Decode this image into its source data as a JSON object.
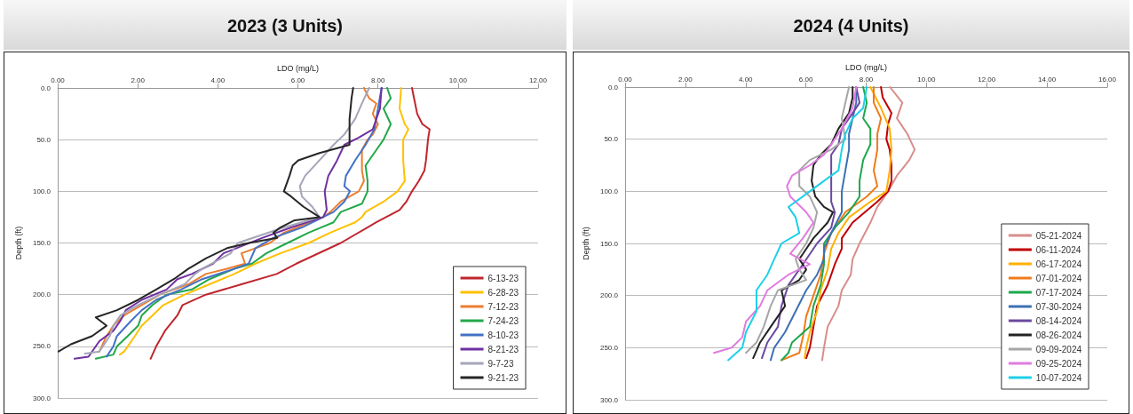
{
  "chart_data": [
    {
      "type": "line",
      "title": "2023 (3 Units)",
      "xlabel": "LDO (mg/L)",
      "ylabel": "Depth (ft)",
      "xlim": [
        0,
        12
      ],
      "xticks": [
        {
          "value": 0,
          "label": "0.00"
        },
        {
          "value": 2,
          "label": "2.00"
        },
        {
          "value": 4,
          "label": "4.00"
        },
        {
          "value": 6,
          "label": "6.00"
        },
        {
          "value": 8,
          "label": "8.00"
        },
        {
          "value": 10,
          "label": "10.00"
        },
        {
          "value": 12,
          "label": "12.00"
        }
      ],
      "ylim": [
        300,
        0
      ],
      "yticks": [
        {
          "value": 0,
          "label": "0.0"
        },
        {
          "value": 50,
          "label": "50.0"
        },
        {
          "value": 100,
          "label": "100.0"
        },
        {
          "value": 150,
          "label": "150.0"
        },
        {
          "value": 200,
          "label": "200.0"
        },
        {
          "value": 250,
          "label": "250.0"
        },
        {
          "value": 300,
          "label": "300.0"
        }
      ],
      "grid": "y",
      "legend": "bottom right",
      "marker": "none",
      "line_style": "solid",
      "series": [
        {
          "name": "6-13-23",
          "color": "#c0262d",
          "x": [
            8.85,
            8.98,
            9.11,
            9.29,
            9.25,
            9.2,
            9.16,
            9.02,
            8.85,
            8.71,
            8.54,
            7.96,
            7.07,
            5.96,
            5.47,
            4.59,
            3.7,
            3.12,
            2.99,
            2.68,
            2.46,
            2.32
          ],
          "values": [
            0,
            25,
            35,
            40,
            50,
            70,
            80,
            90,
            100,
            110,
            118,
            130,
            150,
            170,
            180,
            190,
            200,
            210,
            220,
            235,
            250,
            262
          ]
        },
        {
          "name": "6-28-23",
          "color": "#ffc000",
          "x": [
            8.58,
            8.54,
            8.67,
            8.76,
            8.63,
            8.63,
            8.67,
            8.49,
            8.14,
            7.69,
            7.6,
            7.43,
            6.81,
            6.27,
            5.56,
            4.94,
            4.41,
            3.79,
            3.17,
            2.64,
            2.37,
            2.1,
            1.93,
            1.66,
            1.55
          ],
          "values": [
            0,
            20,
            35,
            40,
            50,
            70,
            90,
            100,
            110,
            120,
            125,
            130,
            140,
            150,
            160,
            170,
            180,
            190,
            200,
            210,
            220,
            230,
            240,
            255,
            258
          ]
        },
        {
          "name": "7-12-23",
          "color": "#ed7d31",
          "x": [
            7.65,
            7.78,
            7.96,
            7.87,
            8.0,
            7.87,
            7.74,
            7.6,
            7.6,
            7.65,
            7.52,
            7.07,
            6.81,
            6.63,
            5.65,
            5.3,
            4.59,
            4.68,
            4.23,
            3.7,
            3.26,
            2.55,
            2.1,
            1.66,
            1.39,
            1.22,
            1.04
          ],
          "values": [
            0,
            10,
            15,
            25,
            35,
            45,
            50,
            60,
            80,
            90,
            100,
            110,
            120,
            125,
            140,
            150,
            160,
            170,
            175,
            180,
            190,
            200,
            210,
            220,
            230,
            240,
            255
          ]
        },
        {
          "name": "7-24-23",
          "color": "#22a84a",
          "x": [
            8.23,
            8.32,
            8.14,
            8.32,
            8.14,
            7.96,
            7.69,
            7.74,
            7.74,
            7.6,
            7.07,
            6.89,
            6.27,
            5.74,
            5.21,
            4.85,
            4.41,
            3.79,
            3.35,
            2.72,
            2.37,
            2.1,
            2.01,
            1.75,
            1.48,
            1.39,
            0.95
          ],
          "values": [
            0,
            10,
            20,
            35,
            50,
            60,
            75,
            90,
            100,
            112,
            120,
            130,
            140,
            150,
            160,
            170,
            175,
            185,
            195,
            200,
            210,
            220,
            230,
            240,
            250,
            258,
            262
          ]
        },
        {
          "name": "8-10-23",
          "color": "#4472c4",
          "x": [
            8.09,
            8.0,
            7.91,
            7.69,
            7.43,
            7.2,
            7.16,
            7.3,
            7.16,
            6.89,
            6.63,
            6.1,
            5.39,
            4.94,
            4.77,
            4.41,
            3.61,
            3.08,
            2.46,
            2.1,
            1.84,
            1.48,
            1.39,
            1.22
          ],
          "values": [
            0,
            20,
            40,
            55,
            70,
            85,
            95,
            100,
            110,
            120,
            125,
            135,
            145,
            155,
            170,
            175,
            185,
            195,
            205,
            215,
            225,
            240,
            250,
            260
          ]
        },
        {
          "name": "8-21-23",
          "color": "#7030a0",
          "x": [
            8.09,
            8.05,
            7.87,
            7.52,
            7.16,
            6.98,
            6.76,
            6.67,
            6.72,
            6.63,
            5.83,
            5.12,
            4.14,
            3.88,
            3.35,
            2.99,
            2.72,
            2.1,
            1.7,
            1.57,
            1.39,
            1.04,
            0.77,
            0.42
          ],
          "values": [
            0,
            20,
            40,
            48,
            55,
            70,
            85,
            100,
            118,
            125,
            135,
            145,
            160,
            170,
            180,
            185,
            195,
            205,
            215,
            225,
            235,
            245,
            260,
            262
          ]
        },
        {
          "name": "9-7-23",
          "color": "#a5a5b8",
          "x": [
            7.78,
            7.6,
            7.43,
            7.16,
            6.89,
            6.54,
            6.18,
            6.05,
            6.1,
            6.36,
            6.54,
            5.65,
            4.5,
            4.32,
            3.61,
            3.43,
            3.17,
            2.55,
            2.01,
            1.57,
            1.39,
            1.3,
            1.04,
            0.68
          ],
          "values": [
            0,
            15,
            30,
            45,
            55,
            70,
            85,
            95,
            105,
            115,
            125,
            135,
            150,
            160,
            175,
            180,
            190,
            200,
            210,
            220,
            230,
            240,
            255,
            257
          ]
        },
        {
          "name": "9-21-23",
          "color": "#262626",
          "x": [
            7.38,
            7.34,
            7.29,
            7.29,
            6.54,
            6.01,
            5.87,
            5.79,
            5.65,
            5.83,
            6.14,
            6.54,
            5.92,
            5.56,
            5.39,
            5.48,
            4.77,
            4.23,
            3.7,
            3.26,
            2.9,
            2.46,
            2.01,
            1.48,
            0.95,
            1.22,
            0.86,
            0.33,
            0.02
          ],
          "values": [
            0,
            10,
            30,
            55,
            63,
            70,
            75,
            85,
            100,
            105,
            115,
            125,
            128,
            135,
            140,
            145,
            150,
            155,
            165,
            175,
            185,
            195,
            205,
            215,
            222,
            230,
            240,
            248,
            255
          ]
        }
      ]
    },
    {
      "type": "line",
      "title": "2024 (4 Units)",
      "xlabel": "LDO (mg/L)",
      "ylabel": "Depth (ft)",
      "xlim": [
        0,
        16
      ],
      "xticks": [
        {
          "value": 0,
          "label": "0.00"
        },
        {
          "value": 2,
          "label": "2.00"
        },
        {
          "value": 4,
          "label": "4.00"
        },
        {
          "value": 6,
          "label": "6.00"
        },
        {
          "value": 8,
          "label": "8.00"
        },
        {
          "value": 10,
          "label": "10.00"
        },
        {
          "value": 12,
          "label": "12.00"
        },
        {
          "value": 14,
          "label": "14.00"
        },
        {
          "value": 16,
          "label": "16.00"
        }
      ],
      "ylim": [
        300,
        0
      ],
      "yticks": [
        {
          "value": 0,
          "label": "0.0"
        },
        {
          "value": 50,
          "label": "50.0"
        },
        {
          "value": 100,
          "label": "100.0"
        },
        {
          "value": 150,
          "label": "150.0"
        },
        {
          "value": 200,
          "label": "200.0"
        },
        {
          "value": 250,
          "label": "250.0"
        },
        {
          "value": 300,
          "label": "300.0"
        }
      ],
      "grid": "y",
      "legend": "bottom right",
      "marker": "none",
      "line_style": "solid",
      "series": [
        {
          "name": "05-21-2024",
          "color": "#d98c8c",
          "x": [
            8.79,
            9.2,
            9.02,
            9.37,
            9.61,
            9.43,
            9.02,
            8.73,
            8.37,
            8.14,
            7.78,
            7.55,
            7.49,
            7.19,
            7.08,
            6.72,
            6.6,
            6.54
          ],
          "values": [
            0,
            15,
            30,
            45,
            60,
            70,
            85,
            100,
            115,
            130,
            150,
            165,
            180,
            195,
            210,
            230,
            250,
            262
          ]
        },
        {
          "name": "06-11-2024",
          "color": "#c00000",
          "x": [
            8.49,
            8.55,
            8.84,
            8.73,
            8.67,
            8.78,
            8.84,
            8.84,
            8.73,
            8.37,
            7.55,
            7.19,
            7.19,
            6.96,
            6.72,
            6.37,
            6.25,
            6.13,
            6.01
          ],
          "values": [
            0,
            10,
            25,
            35,
            50,
            60,
            75,
            90,
            100,
            110,
            130,
            145,
            155,
            170,
            190,
            210,
            230,
            250,
            260
          ]
        },
        {
          "name": "06-17-2024",
          "color": "#ffb000",
          "x": [
            8.14,
            8.49,
            8.78,
            8.84,
            8.78,
            8.67,
            8.14,
            7.43,
            7.08,
            6.84,
            6.72,
            6.49,
            6.37,
            6.13,
            6.01,
            5.96
          ],
          "values": [
            0,
            20,
            40,
            60,
            80,
            100,
            110,
            125,
            140,
            155,
            175,
            195,
            215,
            235,
            250,
            260
          ]
        },
        {
          "name": "07-01-2024",
          "color": "#f07b1a",
          "x": [
            8.25,
            8.25,
            8.49,
            8.37,
            8.37,
            8.25,
            8.37,
            8.02,
            7.31,
            6.84,
            6.6,
            6.49,
            6.25,
            6.01,
            5.9,
            5.78,
            5.19
          ],
          "values": [
            0,
            15,
            30,
            45,
            60,
            80,
            95,
            105,
            120,
            140,
            160,
            180,
            200,
            220,
            240,
            255,
            262
          ]
        },
        {
          "name": "07-17-2024",
          "color": "#1da84b",
          "x": [
            7.9,
            8.02,
            7.9,
            8.14,
            8.14,
            7.9,
            7.78,
            7.78,
            7.43,
            6.96,
            6.6,
            6.6,
            6.49,
            6.25,
            6.13,
            5.54,
            5.42,
            5.19
          ],
          "values": [
            0,
            15,
            30,
            40,
            55,
            70,
            90,
            105,
            120,
            135,
            150,
            170,
            190,
            210,
            230,
            245,
            255,
            262
          ]
        },
        {
          "name": "07-30-2024",
          "color": "#3d6fb5",
          "x": [
            7.67,
            7.67,
            7.55,
            7.43,
            7.43,
            7.31,
            7.19,
            7.19,
            6.84,
            6.6,
            6.6,
            6.37,
            6.01,
            5.66,
            5.31,
            4.95,
            4.83
          ],
          "values": [
            0,
            15,
            30,
            45,
            60,
            80,
            100,
            120,
            140,
            155,
            165,
            180,
            195,
            215,
            235,
            250,
            262
          ]
        },
        {
          "name": "08-14-2024",
          "color": "#6a4aa0",
          "x": [
            7.67,
            7.78,
            7.55,
            7.19,
            7.08,
            6.84,
            6.84,
            6.84,
            6.84,
            6.96,
            6.84,
            6.37,
            5.9,
            5.42,
            5.19,
            5.07,
            4.72,
            4.54
          ],
          "values": [
            0,
            15,
            25,
            40,
            55,
            65,
            80,
            95,
            110,
            120,
            135,
            150,
            170,
            190,
            210,
            230,
            245,
            260
          ]
        },
        {
          "name": "08-26-2024",
          "color": "#222222",
          "x": [
            7.55,
            7.55,
            7.43,
            7.08,
            6.84,
            6.49,
            6.25,
            6.19,
            6.31,
            6.6,
            6.9,
            6.72,
            6.25,
            5.9,
            5.78,
            6.01,
            5.78,
            5.19,
            5.31,
            4.83,
            4.48,
            4.25
          ],
          "values": [
            0,
            10,
            25,
            40,
            55,
            65,
            75,
            90,
            105,
            115,
            120,
            130,
            145,
            160,
            165,
            175,
            185,
            195,
            210,
            230,
            245,
            260
          ]
        },
        {
          "name": "09-09-2024",
          "color": "#a6a6a6",
          "x": [
            7.43,
            7.31,
            7.19,
            7.31,
            6.84,
            6.13,
            5.78,
            5.78,
            6.13,
            6.37,
            6.25,
            6.01,
            5.66,
            5.78,
            6.01,
            5.07,
            4.83,
            4.6,
            4.36,
            4.01
          ],
          "values": [
            0,
            15,
            30,
            50,
            60,
            70,
            80,
            95,
            105,
            120,
            135,
            150,
            165,
            175,
            185,
            195,
            210,
            230,
            245,
            255
          ]
        },
        {
          "name": "09-25-2024",
          "color": "#e07be0",
          "x": [
            7.67,
            7.55,
            7.19,
            6.84,
            6.6,
            6.13,
            5.54,
            5.37,
            5.48,
            6.01,
            6.25,
            5.9,
            5.48,
            6.13,
            5.42,
            4.72,
            4.48,
            4.01,
            3.89,
            3.54,
            2.95
          ],
          "values": [
            0,
            20,
            40,
            55,
            65,
            75,
            85,
            95,
            105,
            120,
            130,
            145,
            160,
            170,
            180,
            195,
            210,
            225,
            240,
            250,
            255
          ]
        },
        {
          "name": "10-07-2024",
          "color": "#1ed0e8",
          "x": [
            8.02,
            7.9,
            7.55,
            7.31,
            7.19,
            7.08,
            6.6,
            6.13,
            5.42,
            5.66,
            5.78,
            5.19,
            4.95,
            4.72,
            4.36,
            4.36,
            4.01,
            3.89,
            3.42
          ],
          "values": [
            0,
            20,
            30,
            45,
            60,
            80,
            90,
            100,
            115,
            125,
            140,
            150,
            165,
            180,
            195,
            215,
            235,
            250,
            262
          ]
        }
      ]
    }
  ]
}
